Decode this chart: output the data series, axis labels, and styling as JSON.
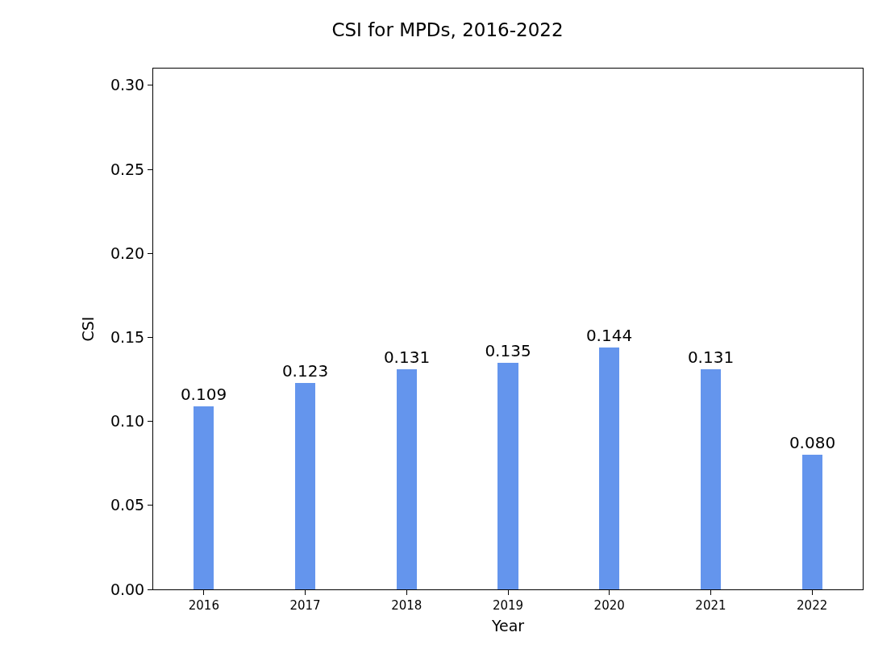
{
  "chart_data": {
    "type": "bar",
    "title": "CSI for MPDs, 2016-2022",
    "xlabel": "Year",
    "ylabel": "CSI",
    "categories": [
      "2016",
      "2017",
      "2018",
      "2019",
      "2020",
      "2021",
      "2022"
    ],
    "values": [
      0.109,
      0.123,
      0.131,
      0.135,
      0.144,
      0.131,
      0.08
    ],
    "value_labels": [
      "0.109",
      "0.123",
      "0.131",
      "0.135",
      "0.144",
      "0.131",
      "0.080"
    ],
    "color": "#6495ed",
    "ylim": [
      0,
      0.31
    ],
    "yticks": [
      {
        "value": 0,
        "label": "0.00"
      },
      {
        "value": 0.05,
        "label": "0.05"
      },
      {
        "value": 0.1,
        "label": "0.10"
      },
      {
        "value": 0.15,
        "label": "0.15"
      },
      {
        "value": 0.2,
        "label": "0.20"
      },
      {
        "value": 0.25,
        "label": "0.25"
      },
      {
        "value": 0.3,
        "label": "0.30"
      }
    ],
    "grid": false
  }
}
